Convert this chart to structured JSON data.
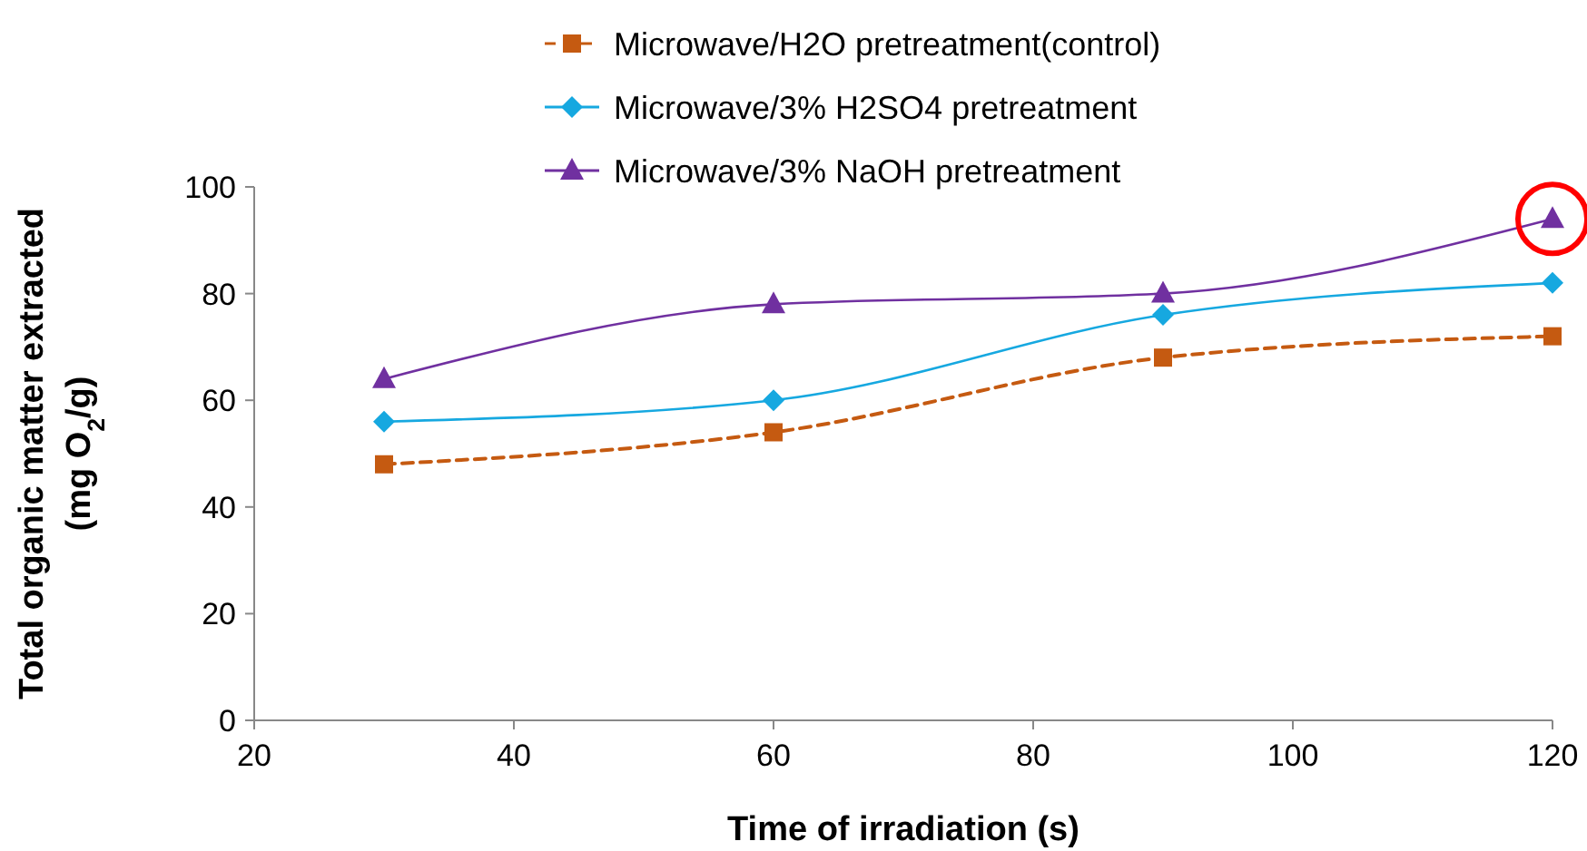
{
  "chart_data": {
    "type": "line",
    "xlabel": "Time of irradiation (s)",
    "ylabel": "Total organic matter extracted\n(mg O$_{2}$/g)",
    "x": [
      30,
      60,
      90,
      120
    ],
    "series": [
      {
        "name": "Microwave/H2O pretreatment(control)",
        "color": "#c55a11",
        "values": [
          48,
          54,
          68,
          72
        ],
        "marker": "square",
        "line_style": "dashed"
      },
      {
        "name": "Microwave/3% H2SO4 pretreatment",
        "color": "#16a8e0",
        "values": [
          56,
          60,
          76,
          82
        ],
        "marker": "diamond",
        "line_style": "solid"
      },
      {
        "name": "Microwave/3% NaOH pretreatment",
        "color": "#7030a0",
        "values": [
          64,
          78,
          80,
          94
        ],
        "marker": "triangle",
        "line_style": "solid"
      }
    ],
    "xlim": [
      20,
      120
    ],
    "xticks": [
      20,
      40,
      60,
      80,
      100,
      120
    ],
    "ylim": [
      0,
      100
    ],
    "yticks": [
      0,
      20,
      40,
      60,
      80,
      100
    ],
    "grid": false,
    "legend": "top"
  }
}
